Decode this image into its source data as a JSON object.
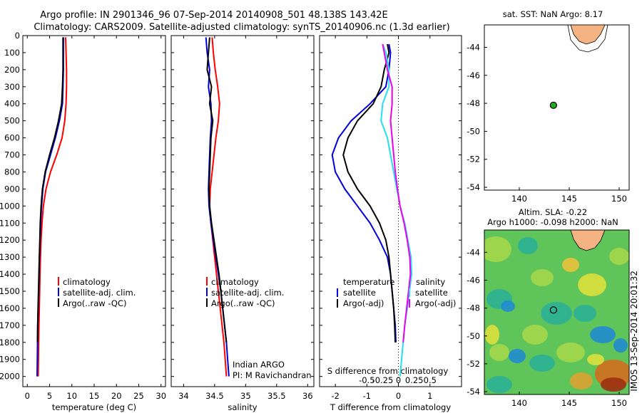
{
  "header": {
    "line1": "Argo profile: IN 2901346_96 07-Sep-2014 20140908_501 48.138S 143.42E",
    "line2": "Climatology: CARS2009. Satellite-adjusted climatology: synTS_20140906.nc (1.3d earlier)"
  },
  "colors": {
    "climatology": "#ff0000",
    "satellite": "#0000dd",
    "argo": "#000000",
    "sat_sal": "#22e0ee",
    "argo_sal": "#ee00ee",
    "land": "#f5b383",
    "dot": "#22aa22"
  },
  "chart_data": [
    {
      "id": "temperature",
      "type": "line",
      "xlabel": "temperature (deg C)",
      "xlim": [
        -1,
        31
      ],
      "ylim": [
        2060,
        0
      ],
      "y_inverted": true,
      "xticks": [
        0,
        5,
        10,
        15,
        20,
        25,
        30
      ],
      "yticks": [
        0,
        100,
        200,
        300,
        400,
        500,
        600,
        700,
        800,
        900,
        1000,
        1100,
        1200,
        1300,
        1400,
        1500,
        1600,
        1700,
        1800,
        1900,
        2000
      ],
      "legend": [
        "climatology",
        "satellite-adj. clim.",
        "Argo(..raw -QC)"
      ],
      "series": [
        {
          "name": "climatology",
          "color": "climatology",
          "x": [
            8.6,
            8.7,
            8.8,
            8.8,
            8.7,
            8.4,
            7.8,
            6.6,
            5.2,
            4.2,
            3.6,
            3.3,
            3.1,
            2.95,
            2.85,
            2.78,
            2.7,
            2.62,
            2.55,
            2.5,
            2.45
          ],
          "y": [
            10,
            100,
            200,
            300,
            400,
            500,
            600,
            700,
            800,
            900,
            1000,
            1100,
            1200,
            1300,
            1400,
            1500,
            1600,
            1700,
            1800,
            1900,
            2000
          ]
        },
        {
          "name": "satellite-adj. clim.",
          "color": "satellite",
          "x": [
            8.1,
            8.1,
            8.1,
            8.0,
            7.9,
            7.2,
            6.3,
            5.2,
            4.1,
            3.5,
            3.2,
            3.0,
            2.85,
            2.75,
            2.65,
            2.55,
            2.45,
            2.35,
            2.3,
            2.25,
            2.2
          ],
          "y": [
            10,
            100,
            200,
            300,
            400,
            500,
            600,
            700,
            800,
            900,
            1000,
            1100,
            1200,
            1300,
            1400,
            1500,
            1600,
            1700,
            1800,
            1900,
            2000
          ]
        },
        {
          "name": "Argo(..raw -QC)",
          "color": "argo",
          "x": [
            8.0,
            8.0,
            8.0,
            7.9,
            7.7,
            7.0,
            6.1,
            5.0,
            4.0,
            3.4,
            3.1,
            2.9,
            2.8,
            2.7,
            2.6,
            2.5,
            2.4,
            2.32,
            2.28
          ],
          "y": [
            10,
            100,
            200,
            300,
            400,
            500,
            600,
            700,
            800,
            900,
            1000,
            1100,
            1200,
            1300,
            1400,
            1500,
            1600,
            1700,
            1800
          ]
        }
      ]
    },
    {
      "id": "salinity",
      "type": "line",
      "xlabel": "salinity",
      "xlim": [
        33.8,
        36.1
      ],
      "ylim": [
        2060,
        0
      ],
      "y_inverted": true,
      "xticks": [
        34,
        34.5,
        35,
        35.5,
        36
      ],
      "legend": [
        "climatology",
        "satellite-adj. clim.",
        "Argo(..raw -QC)"
      ],
      "annotation": [
        "Indian ARGO",
        "PI: M Ravichandran"
      ],
      "series": [
        {
          "name": "climatology",
          "color": "climatology",
          "x": [
            34.46,
            34.48,
            34.51,
            34.55,
            34.58,
            34.56,
            34.52,
            34.49,
            34.46,
            34.43,
            34.42,
            34.44,
            34.47,
            34.5,
            34.53,
            34.56,
            34.59,
            34.62,
            34.65,
            34.67,
            34.69
          ],
          "y": [
            10,
            100,
            200,
            300,
            400,
            500,
            600,
            700,
            800,
            900,
            1000,
            1100,
            1200,
            1300,
            1400,
            1500,
            1600,
            1700,
            1800,
            1900,
            2000
          ]
        },
        {
          "name": "satellite-adj. clim.",
          "color": "satellite",
          "x": [
            34.36,
            34.38,
            34.42,
            34.4,
            34.44,
            34.45,
            34.43,
            34.42,
            34.41,
            34.4,
            34.41,
            34.44,
            34.48,
            34.52,
            34.56,
            34.6,
            34.63,
            34.66,
            34.69,
            34.71,
            34.73
          ],
          "y": [
            10,
            100,
            200,
            300,
            400,
            500,
            600,
            700,
            800,
            900,
            1000,
            1100,
            1200,
            1300,
            1400,
            1500,
            1600,
            1700,
            1800,
            1900,
            2000
          ]
        },
        {
          "name": "Argo(..raw -QC)",
          "color": "argo",
          "x": [
            34.42,
            34.4,
            34.38,
            34.45,
            34.42,
            34.47,
            34.44,
            34.43,
            34.42,
            34.41,
            34.42,
            34.45,
            34.49,
            34.53,
            34.57,
            34.6,
            34.63,
            34.66,
            34.69
          ],
          "y": [
            10,
            100,
            200,
            300,
            400,
            500,
            600,
            700,
            800,
            900,
            1000,
            1100,
            1200,
            1300,
            1400,
            1500,
            1600,
            1700,
            1800
          ]
        }
      ]
    },
    {
      "id": "differences",
      "type": "line",
      "xlabel": "T difference from climatology",
      "xlabel2": "S difference from climatology",
      "xlim": [
        -2.5,
        2.0
      ],
      "ylim": [
        2060,
        0
      ],
      "y_inverted": true,
      "xticks": [
        -2,
        -1,
        0,
        1
      ],
      "xticks2": [
        "-0.5",
        "-0.25",
        "0",
        "0.25",
        "0.5"
      ],
      "zero_line": 0,
      "legend": {
        "temperature": [
          "temperature",
          "satellite",
          "Argo(-adj)"
        ],
        "salinity": [
          "salinity",
          "satellite",
          "Argo(-adj)"
        ]
      },
      "series": [
        {
          "name": "T satellite",
          "color": "satellite",
          "x": [
            -0.3,
            -0.25,
            -0.3,
            -0.4,
            -0.9,
            -1.5,
            -1.9,
            -2.1,
            -2.0,
            -1.7,
            -1.3,
            -0.9,
            -0.6,
            -0.35,
            -0.25,
            -0.2,
            -0.15,
            -0.1,
            -0.08
          ],
          "y": [
            50,
            100,
            200,
            300,
            400,
            500,
            600,
            700,
            800,
            900,
            1000,
            1100,
            1200,
            1300,
            1400,
            1500,
            1600,
            1700,
            1800
          ]
        },
        {
          "name": "T Argo(-adj)",
          "color": "argo",
          "x": [
            -0.35,
            -0.3,
            -0.45,
            -0.55,
            -0.8,
            -1.3,
            -1.6,
            -1.75,
            -1.6,
            -1.3,
            -0.9,
            -0.6,
            -0.4,
            -0.3,
            -0.25,
            -0.2,
            -0.15,
            -0.12,
            -0.1
          ],
          "y": [
            50,
            100,
            200,
            300,
            400,
            500,
            600,
            700,
            800,
            900,
            1000,
            1100,
            1200,
            1300,
            1400,
            1500,
            1600,
            1700,
            1800
          ]
        },
        {
          "name": "S satellite",
          "color": "sat_sal",
          "x": [
            -0.5,
            -0.4,
            -0.3,
            -0.3,
            -0.5,
            -0.55,
            -0.35,
            -0.25,
            -0.15,
            -0.05,
            0.05,
            0.2,
            0.3,
            0.4,
            0.42,
            0.35,
            0.28,
            0.2,
            0.15,
            0.1,
            0.05
          ],
          "y": [
            50,
            100,
            200,
            300,
            400,
            500,
            600,
            700,
            800,
            900,
            1000,
            1100,
            1200,
            1300,
            1400,
            1500,
            1600,
            1700,
            1800,
            1900,
            2000
          ]
        },
        {
          "name": "S Argo(-adj)",
          "color": "argo_sal",
          "x": [
            -0.5,
            -0.45,
            -0.35,
            -0.2,
            -0.2,
            -0.25,
            -0.2,
            -0.15,
            -0.1,
            -0.03,
            0.05,
            0.18,
            0.28,
            0.36,
            0.38,
            0.32,
            0.26,
            0.2,
            0.15
          ],
          "y": [
            50,
            100,
            200,
            300,
            400,
            500,
            600,
            700,
            800,
            900,
            1000,
            1100,
            1200,
            1300,
            1400,
            1500,
            1600,
            1700,
            1800
          ]
        }
      ]
    }
  ],
  "maps": [
    {
      "id": "sst-map",
      "title": "sat. SST: NaN Argo: 8.17",
      "xlim": [
        136.5,
        151
      ],
      "ylim": [
        -54.2,
        -42.4
      ],
      "xticks": [
        140,
        145,
        150
      ],
      "yticks": [
        -44,
        -46,
        -48,
        -50,
        -52,
        -54
      ],
      "float": {
        "lon": 143.42,
        "lat": -48.138
      }
    },
    {
      "id": "sla-map",
      "title": "Altim. SLA: -0.22",
      "subtitle": "Argo h1000: -0.098 h2000: NaN",
      "xlim": [
        136.5,
        151
      ],
      "ylim": [
        -54.2,
        -42.4
      ],
      "xticks": [
        140,
        145,
        150
      ],
      "yticks": [
        -44,
        -46,
        -48,
        -50,
        -52,
        -54
      ],
      "float": {
        "lon": 143.42,
        "lat": -48.138
      }
    }
  ],
  "side_label": "IMOS 13-Sep-2014 20:01:32"
}
